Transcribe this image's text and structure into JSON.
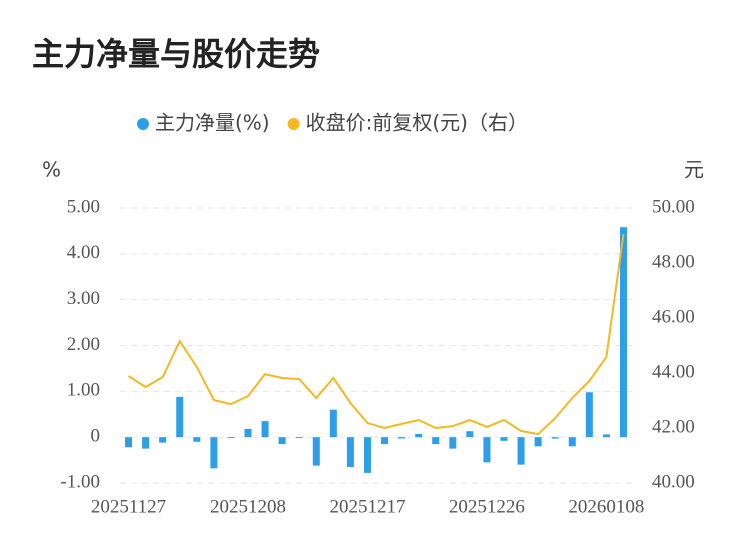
{
  "chart_data": {
    "type": "bar-line",
    "title": "主力净量与股价走势",
    "y_label": "%",
    "y2_label": "元",
    "categories": [
      "20251127",
      null,
      null,
      null,
      null,
      null,
      null,
      "20251208",
      null,
      null,
      null,
      null,
      null,
      null,
      "20251217",
      null,
      null,
      null,
      null,
      null,
      null,
      "20251226",
      null,
      null,
      null,
      null,
      null,
      null,
      "20260108",
      null
    ],
    "series": [
      {
        "name": "主力净量(%)",
        "type": "bar",
        "color": "#2e9ee8",
        "values": [
          -0.22,
          -0.25,
          -0.12,
          0.88,
          -0.1,
          -0.68,
          -0.02,
          0.18,
          0.35,
          -0.15,
          -0.02,
          -0.62,
          0.6,
          -0.65,
          -0.78,
          -0.15,
          -0.03,
          0.07,
          -0.15,
          -0.25,
          0.13,
          -0.55,
          -0.08,
          -0.6,
          -0.2,
          -0.03,
          -0.2,
          0.98,
          0.06,
          4.58
        ]
      },
      {
        "name": "收盘价:前复权(元)（右）",
        "type": "line",
        "axis": "y2",
        "color": "#f4b820",
        "values": [
          43.89,
          43.49,
          43.85,
          45.16,
          44.22,
          43.02,
          42.87,
          43.16,
          43.96,
          43.82,
          43.78,
          43.09,
          43.82,
          42.91,
          42.18,
          42.0,
          42.15,
          42.29,
          42.0,
          42.07,
          42.29,
          42.04,
          42.29,
          41.89,
          41.78,
          42.36,
          43.09,
          43.71,
          44.58,
          49.05
        ]
      }
    ],
    "ylim": [
      -1,
      5
    ],
    "yticks": [
      {
        "value": -1,
        "label": "-1.00"
      },
      0,
      {
        "value": 1,
        "label": "1.00"
      },
      {
        "value": 2,
        "label": "2.00"
      },
      {
        "value": 3,
        "label": "3.00"
      },
      {
        "value": 4,
        "label": "4.00"
      },
      {
        "value": 5,
        "label": "5.00"
      }
    ],
    "y2lim": [
      40,
      50
    ],
    "y2ticks": [
      {
        "value": 40,
        "label": "40.00"
      },
      {
        "value": 42,
        "label": "42.00"
      },
      {
        "value": 44,
        "label": "44.00"
      },
      {
        "value": 46,
        "label": "46.00"
      },
      {
        "value": 48,
        "label": "48.00"
      },
      {
        "value": 50,
        "label": "50.00"
      }
    ],
    "grid": true
  }
}
